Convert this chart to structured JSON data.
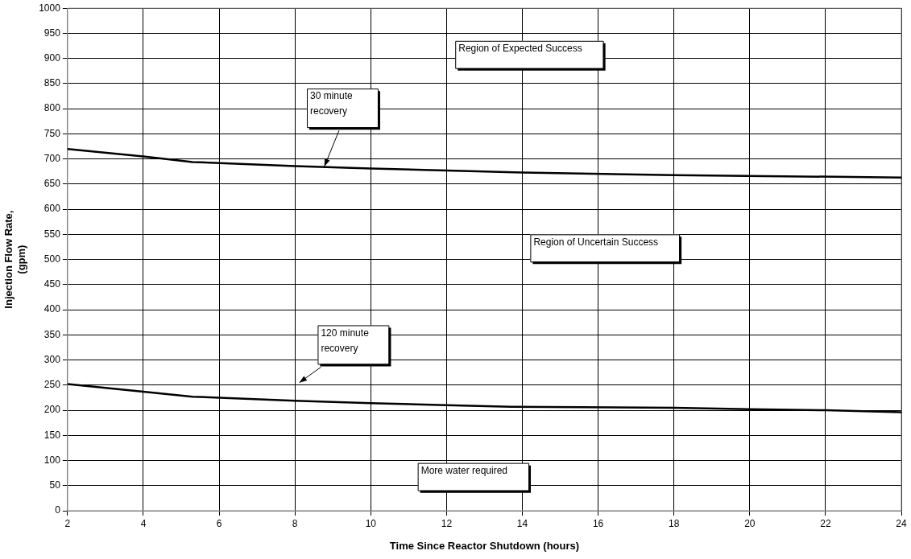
{
  "chart_data": {
    "type": "line",
    "xlabel": "Time Since Reactor Shutdown (hours)",
    "ylabel": "Injection Flow Rate, (gpm)",
    "series": [
      {
        "color": "#000000",
        "x": [
          2,
          4,
          5.3,
          8,
          10,
          14,
          18,
          24
        ],
        "values": [
          720,
          705,
          694,
          686,
          681,
          673,
          668,
          663
        ]
      },
      {
        "color": "#000000",
        "x": [
          2,
          4,
          5.3,
          8,
          10,
          12,
          13.7,
          18,
          20,
          22,
          24
        ],
        "values": [
          252,
          237,
          227,
          219,
          214,
          210,
          207,
          205,
          202,
          200,
          196
        ]
      }
    ],
    "xlim": [
      2,
      24
    ],
    "xticks": [
      2,
      4,
      6,
      8,
      10,
      12,
      14,
      16,
      18,
      20,
      22,
      24
    ],
    "ylim": [
      0,
      1000
    ],
    "yticks": [
      0,
      50,
      100,
      150,
      200,
      250,
      300,
      350,
      400,
      450,
      500,
      550,
      600,
      650,
      700,
      750,
      800,
      850,
      900,
      950,
      1000
    ],
    "grid": true,
    "legend": false,
    "marker": "none",
    "line_style": "solid",
    "annotations": [
      "Region of Expected Success",
      "30 minute recovery",
      "Region of Uncertain Success",
      "120 minute recovery",
      "More water required"
    ]
  }
}
